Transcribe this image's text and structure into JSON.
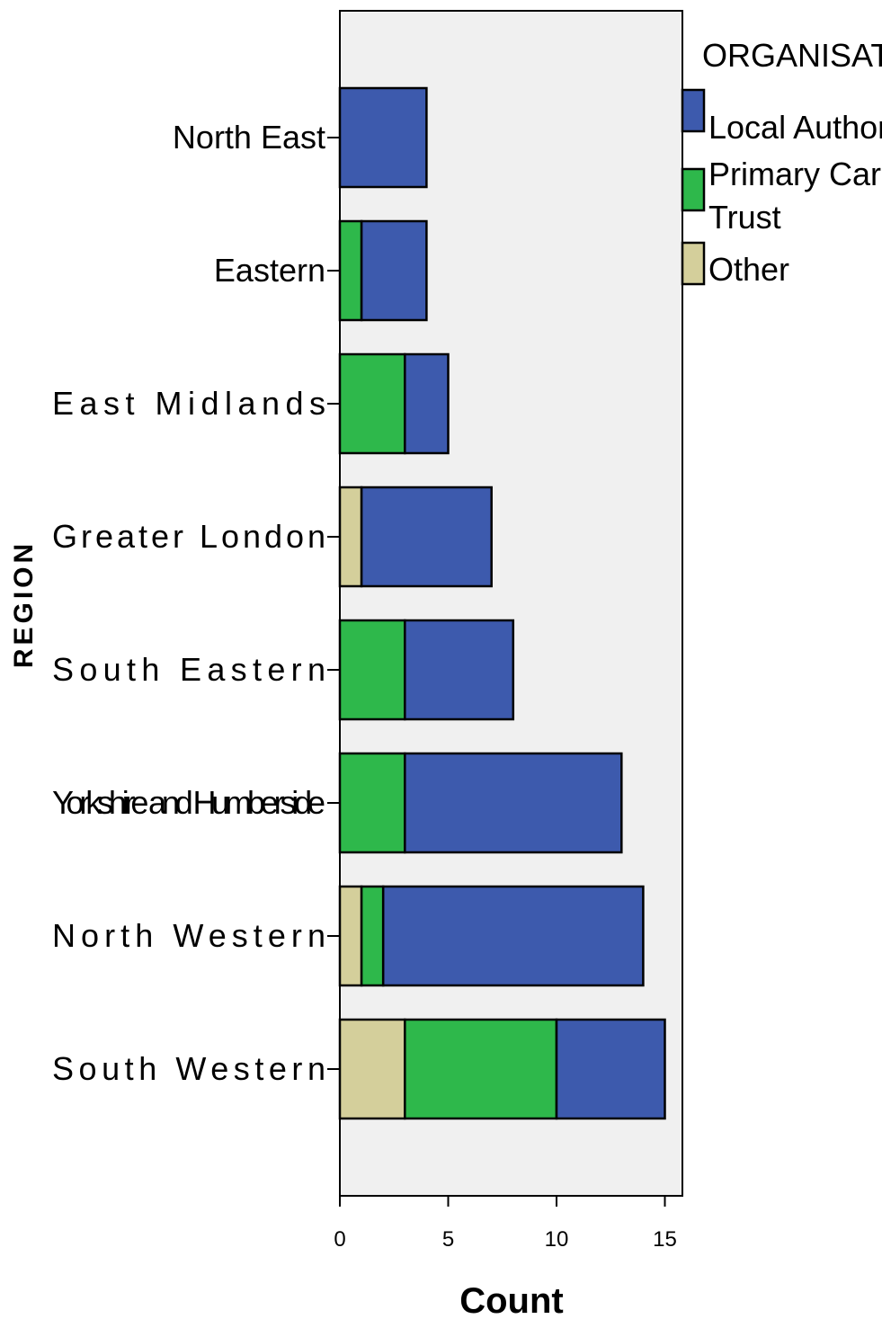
{
  "chart_data": {
    "type": "bar",
    "orientation": "horizontal",
    "stacked": true,
    "categories": [
      "North East",
      "Eastern",
      "East Midlands",
      "Greater London",
      "South Eastern",
      "Yorkshire and Humberside",
      "North Western",
      "South Western"
    ],
    "series": [
      {
        "name": "Other",
        "values": [
          0,
          0,
          0,
          1,
          0,
          0,
          1,
          3
        ],
        "color": "#d4cf9b"
      },
      {
        "name": "Primary Care Trust",
        "values": [
          0,
          1,
          3,
          0,
          3,
          3,
          1,
          7
        ],
        "color": "#2eb84b"
      },
      {
        "name": "Local Authority",
        "values": [
          4,
          3,
          2,
          6,
          5,
          10,
          12,
          5
        ],
        "color": "#3d5aad"
      }
    ],
    "xlabel": "Count",
    "ylabel": "REGION",
    "xlim": [
      0,
      15.8
    ],
    "xticks": [
      0,
      5,
      10,
      15
    ],
    "plot_background": "#f0f0f0",
    "legend": {
      "title": "ORGANISATION",
      "position": "top-right",
      "entries": [
        {
          "lines": [
            "Local Authority"
          ],
          "color": "#3d5aad"
        },
        {
          "lines": [
            "Primary Care",
            "Trust"
          ],
          "color": "#2eb84b"
        },
        {
          "lines": [
            "Other"
          ],
          "color": "#d4cf9b"
        }
      ]
    }
  }
}
